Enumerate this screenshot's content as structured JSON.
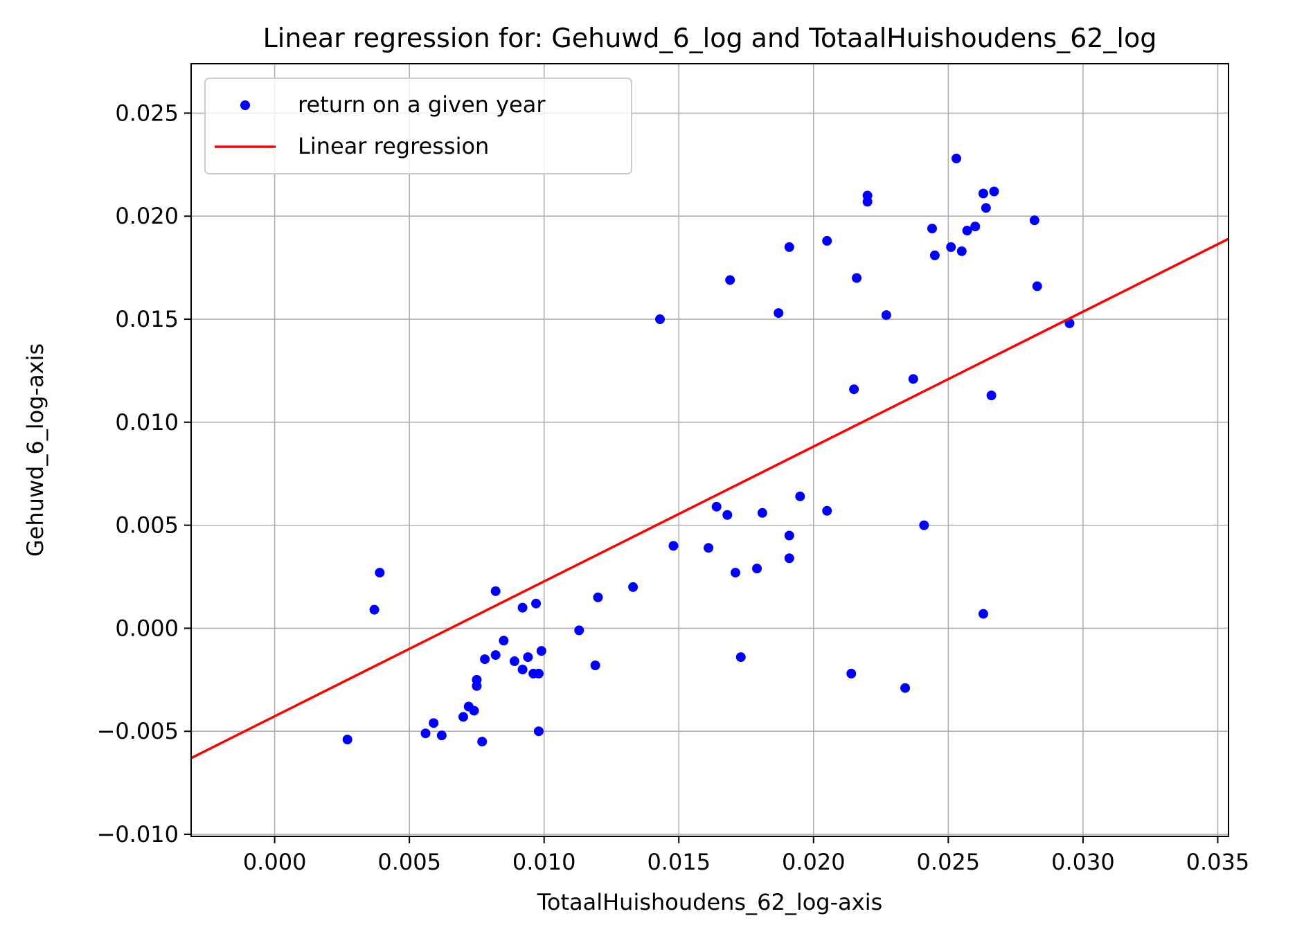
{
  "chart_data": {
    "type": "scatter",
    "title": "Linear regression for: Gehuwd_6_log and TotaalHuishoudens_62_log",
    "xlabel": "TotaalHuishoudens_62_log-axis",
    "ylabel": "Gehuwd_6_log-axis",
    "xlim": [
      -0.0031,
      0.0354
    ],
    "ylim": [
      -0.0101,
      0.0274
    ],
    "x_ticks": [
      0.0,
      0.005,
      0.01,
      0.015,
      0.02,
      0.025,
      0.03,
      0.035
    ],
    "x_tick_labels": [
      "0.000",
      "0.005",
      "0.010",
      "0.015",
      "0.020",
      "0.025",
      "0.030",
      "0.035"
    ],
    "y_ticks": [
      -0.01,
      -0.005,
      0.0,
      0.005,
      0.01,
      0.015,
      0.02,
      0.025
    ],
    "y_tick_labels": [
      "−0.010",
      "−0.005",
      "0.000",
      "0.005",
      "0.010",
      "0.015",
      "0.020",
      "0.025"
    ],
    "grid": true,
    "legend_position": "top-left",
    "series": [
      {
        "name": "return on a given year",
        "type": "scatter",
        "color": "#0000ff",
        "points": [
          [
            0.0027,
            -0.0054
          ],
          [
            0.0037,
            0.0009
          ],
          [
            0.0039,
            0.0027
          ],
          [
            0.0056,
            -0.0051
          ],
          [
            0.0059,
            -0.0046
          ],
          [
            0.0062,
            -0.0052
          ],
          [
            0.007,
            -0.0043
          ],
          [
            0.0072,
            -0.0038
          ],
          [
            0.0074,
            -0.004
          ],
          [
            0.0075,
            -0.0025
          ],
          [
            0.0075,
            -0.0028
          ],
          [
            0.0077,
            -0.0055
          ],
          [
            0.0078,
            -0.0015
          ],
          [
            0.0082,
            -0.0013
          ],
          [
            0.0082,
            0.0018
          ],
          [
            0.0085,
            -0.0006
          ],
          [
            0.0089,
            -0.0016
          ],
          [
            0.0092,
            -0.002
          ],
          [
            0.0092,
            0.001
          ],
          [
            0.0094,
            -0.0014
          ],
          [
            0.0096,
            -0.0022
          ],
          [
            0.0097,
            0.0012
          ],
          [
            0.0098,
            -0.0022
          ],
          [
            0.0098,
            -0.005
          ],
          [
            0.0099,
            -0.0011
          ],
          [
            0.0113,
            -0.0001
          ],
          [
            0.0119,
            -0.0018
          ],
          [
            0.012,
            0.0015
          ],
          [
            0.0133,
            0.002
          ],
          [
            0.0143,
            0.015
          ],
          [
            0.0148,
            0.004
          ],
          [
            0.0161,
            0.0039
          ],
          [
            0.0164,
            0.0059
          ],
          [
            0.0168,
            0.0055
          ],
          [
            0.0169,
            0.0169
          ],
          [
            0.0171,
            0.0027
          ],
          [
            0.0173,
            -0.0014
          ],
          [
            0.0179,
            0.0029
          ],
          [
            0.0181,
            0.0056
          ],
          [
            0.0187,
            0.0153
          ],
          [
            0.0191,
            0.0045
          ],
          [
            0.0191,
            0.0034
          ],
          [
            0.0191,
            0.0185
          ],
          [
            0.0195,
            0.0064
          ],
          [
            0.0205,
            0.0057
          ],
          [
            0.0205,
            0.0188
          ],
          [
            0.0214,
            -0.0022
          ],
          [
            0.0215,
            0.0116
          ],
          [
            0.0216,
            0.017
          ],
          [
            0.022,
            0.0207
          ],
          [
            0.022,
            0.021
          ],
          [
            0.0227,
            0.0152
          ],
          [
            0.0234,
            -0.0029
          ],
          [
            0.0237,
            0.0121
          ],
          [
            0.0241,
            0.005
          ],
          [
            0.0244,
            0.0194
          ],
          [
            0.0245,
            0.0181
          ],
          [
            0.0251,
            0.0185
          ],
          [
            0.0253,
            0.0228
          ],
          [
            0.0255,
            0.0183
          ],
          [
            0.0257,
            0.0193
          ],
          [
            0.026,
            0.0195
          ],
          [
            0.0263,
            0.0211
          ],
          [
            0.0263,
            0.0007
          ],
          [
            0.0264,
            0.0204
          ],
          [
            0.0266,
            0.0113
          ],
          [
            0.0267,
            0.0212
          ],
          [
            0.0282,
            0.0198
          ],
          [
            0.0283,
            0.0166
          ],
          [
            0.0295,
            0.0148
          ]
        ]
      },
      {
        "name": "Linear regression",
        "type": "line",
        "color": "#ff0000",
        "points": [
          [
            -0.0031,
            -0.0063
          ],
          [
            0.0354,
            0.0189
          ]
        ]
      }
    ]
  }
}
